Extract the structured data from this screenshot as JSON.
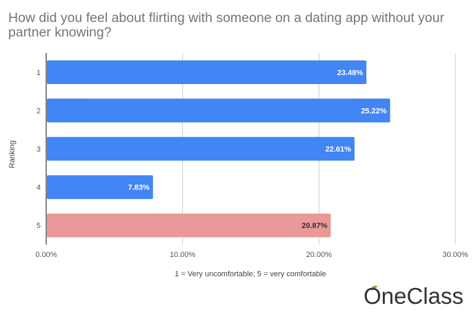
{
  "chart_data": {
    "type": "bar",
    "orientation": "horizontal",
    "title": "How did you feel about flirting with someone on a dating app without your partner knowing?",
    "xlabel": "1 = Very uncomfortable; 5 = very comfortable",
    "ylabel": "Ranking",
    "categories": [
      "1",
      "2",
      "3",
      "4",
      "5"
    ],
    "values": [
      23.48,
      25.22,
      22.61,
      7.83,
      20.87
    ],
    "data_labels": [
      "23.48%",
      "25.22%",
      "22.61%",
      "7.83%",
      "20.87%"
    ],
    "xlim": [
      0,
      30
    ],
    "x_ticks": [
      0,
      10,
      20,
      30
    ],
    "x_tick_labels": [
      "0.00%",
      "10.00%",
      "20.00%",
      "30.00%"
    ],
    "grid": true,
    "bar_colors": [
      "#4285f4",
      "#4285f4",
      "#4285f4",
      "#4285f4",
      "#ea9999"
    ],
    "label_colors": [
      "#ffffff",
      "#ffffff",
      "#ffffff",
      "#ffffff",
      "#333333"
    ]
  },
  "branding": {
    "logo_text": "OneClass"
  }
}
